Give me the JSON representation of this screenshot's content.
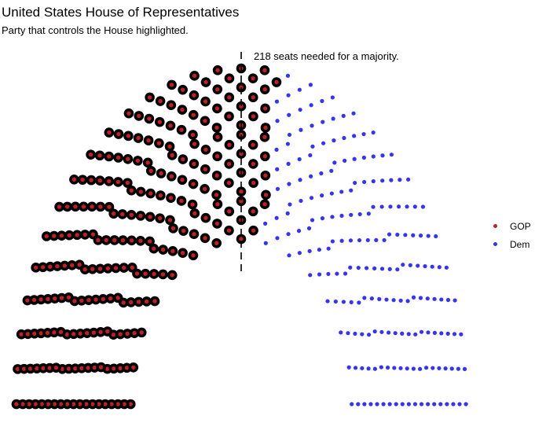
{
  "chart_data": {
    "type": "parliament",
    "title": "United States House of Representatives",
    "subtitle": "Party that controls the House highlighted.",
    "annotation": "218 seats needed for a majority.",
    "total_seats": 435,
    "majority_threshold": 218,
    "rows": 19,
    "highlighted_party": "GOP",
    "series": [
      {
        "name": "GOP",
        "seats": 241,
        "color": "#c41e25"
      },
      {
        "name": "Dem",
        "seats": 194,
        "color": "#3333ff"
      }
    ],
    "legend_position": "right"
  }
}
